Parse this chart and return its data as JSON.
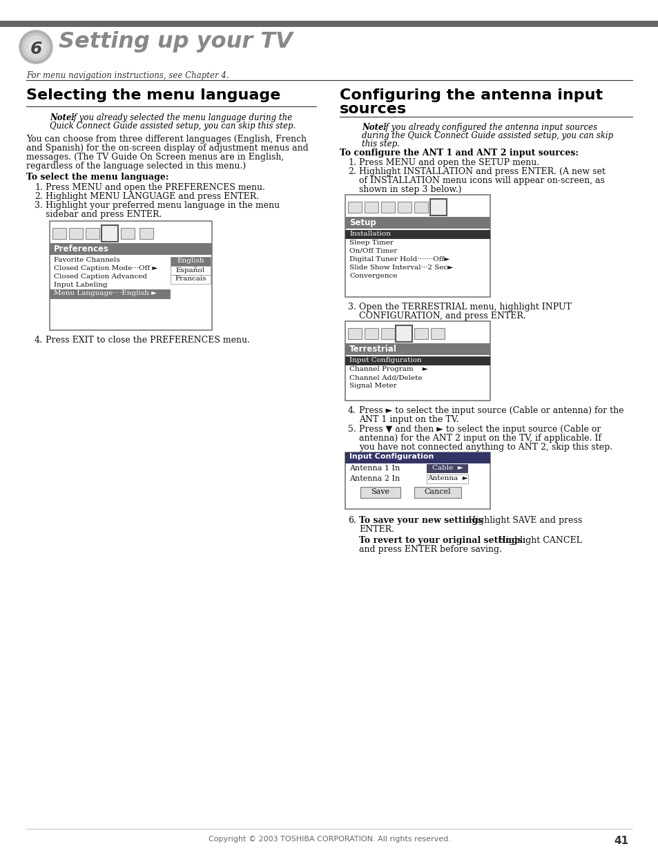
{
  "page_bg": "#ffffff",
  "header_bar_color": "#666666",
  "chapter_num": "6",
  "chapter_title": "Setting up your TV",
  "italic_note": "For menu navigation instructions, see Chapter 4.",
  "left_section_title": "Selecting the menu language",
  "left_note_bold": "Note:",
  "left_note_italic": " If you already selected the menu language during the\nQuick Connect Guide assisted setup, you can skip this step.",
  "left_body": "You can choose from three different languages (English, French\nand Spanish) for the on-screen display of adjustment menus and\nmessages. (The TV Guide On Screen menus are in English,\nregardless of the language selected in this menu.)",
  "left_bold_head": "To select the menu language:",
  "left_step1": "Press MENU and open the PREFERENCES menu.",
  "left_step2": "Highlight MENU LANGUAGE and press ENTER.",
  "left_step3a": "Highlight your preferred menu language in the menu",
  "left_step3b": "sidebar and press ENTER.",
  "left_step4": "Press EXIT to close the PREFERENCES menu.",
  "pref_menu_items": [
    "Favorite Channels",
    "Closed Caption Mode···Off ►",
    "Closed Caption Advanced",
    "Input Labeling",
    "Menu Language····English ►"
  ],
  "pref_lang_items": [
    "English",
    "Español",
    "Francais"
  ],
  "right_section_title1": "Configuring the antenna input",
  "right_section_title2": "sources",
  "right_note_bold": "Note:",
  "right_note_italic": " If you already configured the antenna input sources\nduring the Quick Connect Guide assisted setup, you can skip\nthis step.",
  "right_bold_head": "To configure the ANT 1 and ANT 2 input sources:",
  "right_step1": "Press MENU and open the SETUP menu.",
  "right_step2a": "Highlight INSTALLATION and press ENTER. (A new set",
  "right_step2b": "of INSTALLATION menu icons will appear on-screen, as",
  "right_step2c": "shown in step 3 below.)",
  "setup_menu_items": [
    "Installation",
    "Sleep Timer",
    "On/Off Timer",
    "Digital Tuner Hold·······Off►",
    "Slide Show Interval···2 Sec►",
    "Convergence"
  ],
  "right_step3a": "Open the TERRESTRIAL menu, highlight INPUT",
  "right_step3b": "CONFIGURATION, and press ENTER.",
  "terr_menu_items": [
    "Input Configuration",
    "Channel Program    ►",
    "Channel Add/Delete",
    "Signal Meter"
  ],
  "right_step4a": "Press ► to select the input source (Cable or antenna) for the",
  "right_step4b": "ANT 1 input on the TV.",
  "right_step5a": "Press ▼ and then ► to select the input source (Cable or",
  "right_step5b": "antenna) for the ANT 2 input on the TV, if applicable. If",
  "right_step5c": "you have not connected anything to ANT 2, skip this step.",
  "right_step6_bold": "To save your new settings",
  "right_step6_rest": ": Highlight SAVE and press",
  "right_step6_enter": "ENTER.",
  "right_step6b_bold": "To revert to your original settings:",
  "right_step6b_rest": " Highlight CANCEL",
  "right_step6b_rest2": "and press ENTER before saving.",
  "page_number": "41",
  "footer": "Copyright © 2003 TOSHIBA CORPORATION. All rights reserved."
}
